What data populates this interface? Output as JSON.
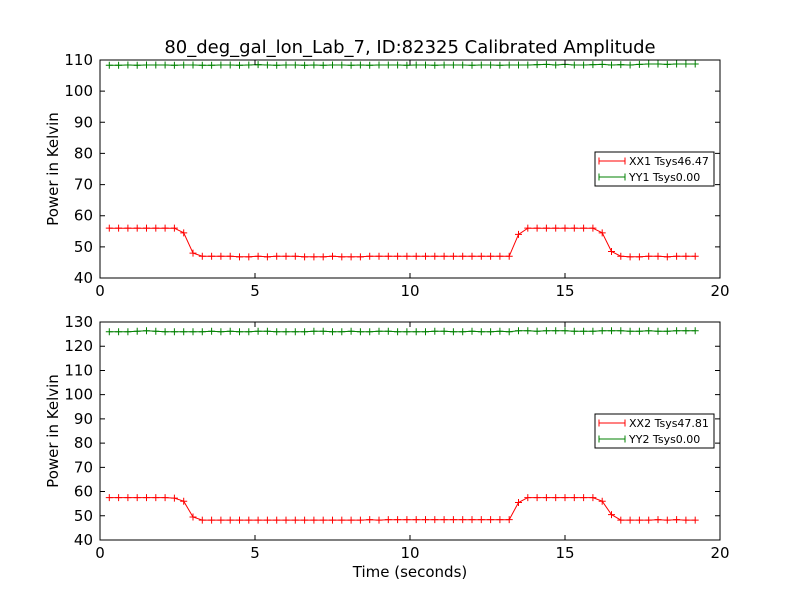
{
  "chart_data": [
    {
      "type": "line",
      "title": "80_deg_gal_lon_Lab_7, ID:82325 Calibrated Amplitude",
      "xlabel": "",
      "ylabel": "Power in Kelvin",
      "xlim": [
        0,
        20
      ],
      "ylim": [
        40,
        110
      ],
      "xticks": [
        0,
        5,
        10,
        15,
        20
      ],
      "yticks": [
        40,
        50,
        60,
        70,
        80,
        90,
        100,
        110
      ],
      "grid": false,
      "legend_position": "right",
      "series": [
        {
          "name": "XX1 Tsys46.47",
          "color": "#ff0000",
          "marker": "+",
          "x": [
            0.3,
            0.6,
            0.9,
            1.2,
            1.5,
            1.8,
            2.1,
            2.4,
            2.7,
            3.0,
            3.3,
            3.6,
            3.9,
            4.2,
            4.5,
            4.8,
            5.1,
            5.4,
            5.7,
            6.0,
            6.3,
            6.6,
            6.9,
            7.2,
            7.5,
            7.8,
            8.1,
            8.4,
            8.7,
            9.0,
            9.3,
            9.6,
            9.9,
            10.2,
            10.5,
            10.8,
            11.1,
            11.4,
            11.7,
            12.0,
            12.3,
            12.6,
            12.9,
            13.2,
            13.5,
            13.8,
            14.1,
            14.4,
            14.7,
            15.0,
            15.3,
            15.6,
            15.9,
            16.2,
            16.5,
            16.8,
            17.1,
            17.4,
            17.7,
            18.0,
            18.3,
            18.6,
            18.9,
            19.2
          ],
          "y": [
            56,
            56,
            56,
            56,
            56,
            56,
            56,
            56,
            54.5,
            48,
            47,
            47,
            47,
            47,
            46.8,
            46.8,
            47,
            46.8,
            47,
            47,
            47,
            46.8,
            46.8,
            46.8,
            47,
            46.8,
            46.8,
            46.8,
            47,
            47,
            47,
            47,
            47,
            47,
            47,
            47,
            47,
            47,
            47,
            47,
            47,
            47,
            47,
            47,
            54,
            56,
            56,
            56,
            56,
            56,
            56,
            56,
            56,
            54.5,
            48.5,
            47,
            46.8,
            46.8,
            47,
            47,
            46.8,
            47,
            47,
            47
          ]
        },
        {
          "name": "YY1 Tsys0.00",
          "color": "#008000",
          "marker": "+",
          "x": [
            0.3,
            0.6,
            0.9,
            1.2,
            1.5,
            1.8,
            2.1,
            2.4,
            2.7,
            3.0,
            3.3,
            3.6,
            3.9,
            4.2,
            4.5,
            4.8,
            5.1,
            5.4,
            5.7,
            6.0,
            6.3,
            6.6,
            6.9,
            7.2,
            7.5,
            7.8,
            8.1,
            8.4,
            8.7,
            9.0,
            9.3,
            9.6,
            9.9,
            10.2,
            10.5,
            10.8,
            11.1,
            11.4,
            11.7,
            12.0,
            12.3,
            12.6,
            12.9,
            13.2,
            13.5,
            13.8,
            14.1,
            14.4,
            14.7,
            15.0,
            15.3,
            15.6,
            15.9,
            16.2,
            16.5,
            16.8,
            17.1,
            17.4,
            17.7,
            18.0,
            18.3,
            18.6,
            18.9,
            19.2
          ],
          "y": [
            108.3,
            108.3,
            108.4,
            108.3,
            108.4,
            108.4,
            108.4,
            108.3,
            108.4,
            108.4,
            108.3,
            108.3,
            108.4,
            108.4,
            108.3,
            108.4,
            108.5,
            108.4,
            108.3,
            108.4,
            108.4,
            108.3,
            108.4,
            108.3,
            108.4,
            108.4,
            108.3,
            108.4,
            108.3,
            108.4,
            108.4,
            108.4,
            108.3,
            108.4,
            108.4,
            108.3,
            108.4,
            108.4,
            108.4,
            108.3,
            108.4,
            108.4,
            108.3,
            108.4,
            108.4,
            108.4,
            108.5,
            108.6,
            108.4,
            108.6,
            108.4,
            108.4,
            108.5,
            108.6,
            108.4,
            108.5,
            108.4,
            108.6,
            108.7,
            108.7,
            108.6,
            108.7,
            108.7,
            108.7
          ]
        }
      ]
    },
    {
      "type": "line",
      "title": "",
      "xlabel": "Time (seconds)",
      "ylabel": "Power in Kelvin",
      "xlim": [
        0,
        20
      ],
      "ylim": [
        40,
        130
      ],
      "xticks": [
        0,
        5,
        10,
        15,
        20
      ],
      "yticks": [
        40,
        50,
        60,
        70,
        80,
        90,
        100,
        110,
        120,
        130
      ],
      "grid": false,
      "legend_position": "right",
      "series": [
        {
          "name": "XX2 Tsys47.81",
          "color": "#ff0000",
          "marker": "+",
          "x": [
            0.3,
            0.6,
            0.9,
            1.2,
            1.5,
            1.8,
            2.1,
            2.4,
            2.7,
            3.0,
            3.3,
            3.6,
            3.9,
            4.2,
            4.5,
            4.8,
            5.1,
            5.4,
            5.7,
            6.0,
            6.3,
            6.6,
            6.9,
            7.2,
            7.5,
            7.8,
            8.1,
            8.4,
            8.7,
            9.0,
            9.3,
            9.6,
            9.9,
            10.2,
            10.5,
            10.8,
            11.1,
            11.4,
            11.7,
            12.0,
            12.3,
            12.6,
            12.9,
            13.2,
            13.5,
            13.8,
            14.1,
            14.4,
            14.7,
            15.0,
            15.3,
            15.6,
            15.9,
            16.2,
            16.5,
            16.8,
            17.1,
            17.4,
            17.7,
            18.0,
            18.3,
            18.6,
            18.9,
            19.2
          ],
          "y": [
            57.5,
            57.5,
            57.5,
            57.5,
            57.5,
            57.5,
            57.5,
            57.3,
            56,
            49.5,
            48.2,
            48.2,
            48.2,
            48.2,
            48.2,
            48.2,
            48.2,
            48.2,
            48.2,
            48.2,
            48.2,
            48.2,
            48.2,
            48.2,
            48.2,
            48.2,
            48.2,
            48.2,
            48.4,
            48.2,
            48.4,
            48.4,
            48.4,
            48.4,
            48.4,
            48.4,
            48.4,
            48.4,
            48.4,
            48.4,
            48.4,
            48.4,
            48.4,
            48.4,
            55.5,
            57.5,
            57.5,
            57.5,
            57.5,
            57.5,
            57.5,
            57.5,
            57.5,
            56,
            50.5,
            48.2,
            48.2,
            48.2,
            48.2,
            48.4,
            48.2,
            48.4,
            48.2,
            48.2
          ]
        },
        {
          "name": "YY2 Tsys0.00",
          "color": "#008000",
          "marker": "+",
          "x": [
            0.3,
            0.6,
            0.9,
            1.2,
            1.5,
            1.8,
            2.1,
            2.4,
            2.7,
            3.0,
            3.3,
            3.6,
            3.9,
            4.2,
            4.5,
            4.8,
            5.1,
            5.4,
            5.7,
            6.0,
            6.3,
            6.6,
            6.9,
            7.2,
            7.5,
            7.8,
            8.1,
            8.4,
            8.7,
            9.0,
            9.3,
            9.6,
            9.9,
            10.2,
            10.5,
            10.8,
            11.1,
            11.4,
            11.7,
            12.0,
            12.3,
            12.6,
            12.9,
            13.2,
            13.5,
            13.8,
            14.1,
            14.4,
            14.7,
            15.0,
            15.3,
            15.6,
            15.9,
            16.2,
            16.5,
            16.8,
            17.1,
            17.4,
            17.7,
            18.0,
            18.3,
            18.6,
            18.9,
            19.2
          ],
          "y": [
            126,
            126,
            126,
            126.2,
            126.4,
            126.2,
            126,
            126,
            126,
            126,
            126,
            126.2,
            126,
            126.2,
            126,
            126,
            126.2,
            126.2,
            126,
            126,
            126,
            126,
            126.2,
            126.2,
            126,
            126,
            126.2,
            126,
            126,
            126.2,
            126.2,
            126,
            126,
            126,
            126,
            126.2,
            126.2,
            126,
            126,
            126.2,
            126,
            126,
            126.2,
            126,
            126.4,
            126.4,
            126.2,
            126.4,
            126.4,
            126.4,
            126.2,
            126.2,
            126.2,
            126.4,
            126.4,
            126.4,
            126.2,
            126.2,
            126.4,
            126.2,
            126.2,
            126.4,
            126.4,
            126.4
          ]
        }
      ]
    }
  ]
}
